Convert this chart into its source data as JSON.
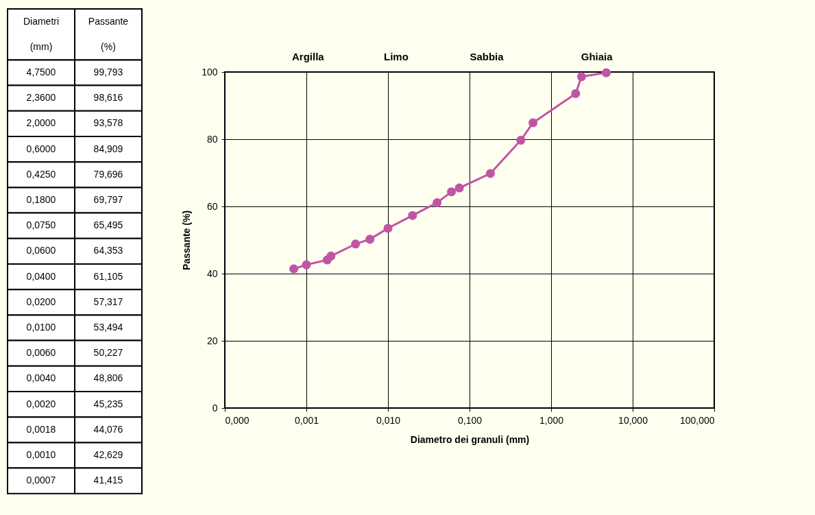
{
  "chart_data": [
    {
      "type": "other",
      "annotations": [
        "Diametri",
        "Passante",
        "(mm)",
        "(%)",
        "4,7500",
        "99,793",
        "2,3600",
        "98,616",
        "2,0000",
        "93,578",
        "0,6000",
        "84,909",
        "0,4250",
        "79,696",
        "0,1800",
        "69,797",
        "0,0750",
        "65,495",
        "0,0600",
        "64,353",
        "0,0400",
        "61,105",
        "0,0200",
        "57,317",
        "0,0100",
        "53,494",
        "0,0060",
        "50,227",
        "0,0040",
        "48,806",
        "0,0020",
        "45,235",
        "0,0018",
        "44,076",
        "0,0010",
        "42,629",
        "0,0007",
        "41,415"
      ]
    },
    {
      "type": "line",
      "xlabel": "Diametro dei granuli (mm)",
      "ylabel": "Passante (%)",
      "annotations": [
        "Argilla",
        "Limo",
        "Sabbia",
        "Ghiaia"
      ],
      "x": [
        4.75,
        2.36,
        2.0,
        0.6,
        0.425,
        0.18,
        0.075,
        0.06,
        0.04,
        0.02,
        0.01,
        0.006,
        0.004,
        0.002,
        0.0018,
        0.001,
        0.0007
      ],
      "series": [
        {
          "color": "#c055a5",
          "values": [
            99.793,
            98.616,
            93.578,
            84.909,
            79.696,
            69.797,
            65.495,
            64.353,
            61.105,
            57.317,
            53.494,
            50.227,
            48.806,
            45.235,
            44.076,
            42.629,
            41.415
          ]
        }
      ],
      "log": "x",
      "xlim": [
        0.0001,
        100
      ],
      "xticks": [
        {
          "value": 0.0001,
          "label": "0,000"
        },
        {
          "value": 0.001,
          "label": "0,001"
        },
        {
          "value": 0.01,
          "label": "0,010"
        },
        {
          "value": 0.1,
          "label": "0,100"
        },
        {
          "value": 1,
          "label": "1,000"
        },
        {
          "value": 10,
          "label": "10,000"
        },
        {
          "value": 100,
          "label": "100,000"
        }
      ],
      "ylim": [
        0,
        100
      ],
      "yticks": [
        0,
        20,
        40,
        60,
        80,
        100
      ],
      "grid": true,
      "marker": "circle",
      "line_style": "solid"
    }
  ]
}
